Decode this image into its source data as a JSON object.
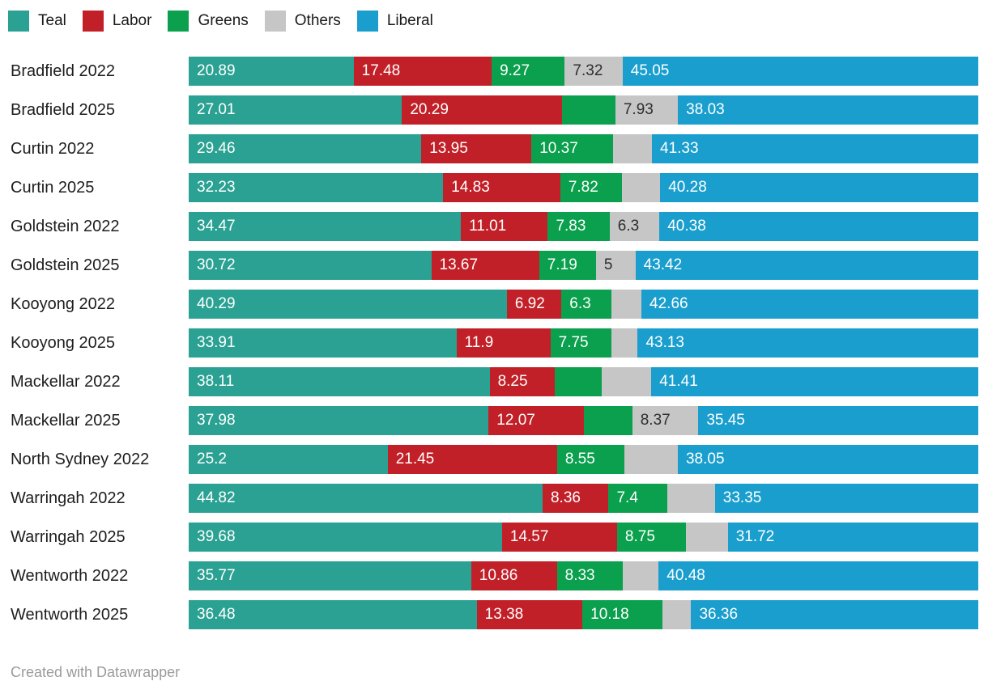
{
  "legend": {
    "items": [
      {
        "label": "Teal",
        "color": "#2aa192"
      },
      {
        "label": "Labor",
        "color": "#c22028"
      },
      {
        "label": "Greens",
        "color": "#0aa04d"
      },
      {
        "label": "Others",
        "color": "#c6c6c6"
      },
      {
        "label": "Liberal",
        "color": "#1a9ece"
      }
    ]
  },
  "footer": {
    "text": "Created with Datawrapper"
  },
  "chart_data": {
    "type": "bar",
    "orientation": "horizontal",
    "stacked": true,
    "stack_total": 100,
    "value_unit": "percent",
    "grid": false,
    "legend_position": "top-left",
    "series": [
      "Teal",
      "Labor",
      "Greens",
      "Others",
      "Liberal"
    ],
    "colors": [
      "#2aa192",
      "#c22028",
      "#0aa04d",
      "#c6c6c6",
      "#1a9ece"
    ],
    "value_label_color": "#ffffff",
    "value_label_color_on_others": "#2e2e2e",
    "rows": [
      {
        "category": "Bradfield 2022",
        "values": [
          20.89,
          17.48,
          9.27,
          7.32,
          45.05
        ],
        "labels": [
          "20.89",
          "17.48",
          "9.27",
          "7.32",
          "45.05"
        ]
      },
      {
        "category": "Bradfield 2025",
        "values": [
          27.01,
          20.29,
          6.74,
          7.93,
          38.03
        ],
        "labels": [
          "27.01",
          "20.29",
          null,
          "7.93",
          "38.03"
        ]
      },
      {
        "category": "Curtin 2022",
        "values": [
          29.46,
          13.95,
          10.37,
          4.89,
          41.33
        ],
        "labels": [
          "29.46",
          "13.95",
          "10.37",
          null,
          "41.33"
        ]
      },
      {
        "category": "Curtin 2025",
        "values": [
          32.23,
          14.83,
          7.82,
          4.84,
          40.28
        ],
        "labels": [
          "32.23",
          "14.83",
          "7.82",
          null,
          "40.28"
        ]
      },
      {
        "category": "Goldstein 2022",
        "values": [
          34.47,
          11.01,
          7.83,
          6.3,
          40.38
        ],
        "labels": [
          "34.47",
          "11.01",
          "7.83",
          "6.3",
          "40.38"
        ]
      },
      {
        "category": "Goldstein 2025",
        "values": [
          30.72,
          13.67,
          7.19,
          5,
          43.42
        ],
        "labels": [
          "30.72",
          "13.67",
          "7.19",
          "5",
          "43.42"
        ]
      },
      {
        "category": "Kooyong 2022",
        "values": [
          40.29,
          6.92,
          6.3,
          3.83,
          42.66
        ],
        "labels": [
          "40.29",
          "6.92",
          "6.3",
          null,
          "42.66"
        ]
      },
      {
        "category": "Kooyong 2025",
        "values": [
          33.91,
          11.9,
          7.75,
          3.31,
          43.13
        ],
        "labels": [
          "33.91",
          "11.9",
          "7.75",
          null,
          "43.13"
        ]
      },
      {
        "category": "Mackellar 2022",
        "values": [
          38.11,
          8.25,
          5.9,
          6.33,
          41.41
        ],
        "labels": [
          "38.11",
          "8.25",
          null,
          null,
          "41.41"
        ]
      },
      {
        "category": "Mackellar 2025",
        "values": [
          37.98,
          12.07,
          6.13,
          8.37,
          35.45
        ],
        "labels": [
          "37.98",
          "12.07",
          null,
          "8.37",
          "35.45"
        ]
      },
      {
        "category": "North Sydney 2022",
        "values": [
          25.2,
          21.45,
          8.55,
          6.75,
          38.05
        ],
        "labels": [
          "25.2",
          "21.45",
          "8.55",
          null,
          "38.05"
        ]
      },
      {
        "category": "Warringah 2022",
        "values": [
          44.82,
          8.36,
          7.4,
          6.07,
          33.35
        ],
        "labels": [
          "44.82",
          "8.36",
          "7.4",
          null,
          "33.35"
        ]
      },
      {
        "category": "Warringah 2025",
        "values": [
          39.68,
          14.57,
          8.75,
          5.28,
          31.72
        ],
        "labels": [
          "39.68",
          "14.57",
          "8.75",
          null,
          "31.72"
        ]
      },
      {
        "category": "Wentworth 2022",
        "values": [
          35.77,
          10.86,
          8.33,
          4.56,
          40.48
        ],
        "labels": [
          "35.77",
          "10.86",
          "8.33",
          null,
          "40.48"
        ]
      },
      {
        "category": "Wentworth 2025",
        "values": [
          36.48,
          13.38,
          10.18,
          3.6,
          36.36
        ],
        "labels": [
          "36.48",
          "13.38",
          "10.18",
          null,
          "36.36"
        ]
      }
    ]
  }
}
